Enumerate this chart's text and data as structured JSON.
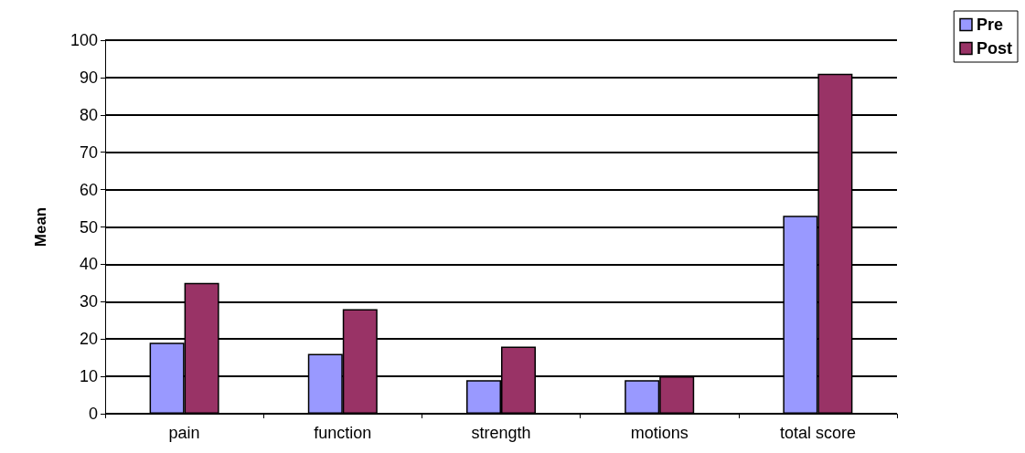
{
  "chart_data": {
    "type": "bar",
    "ylabel": "Mean",
    "categories": [
      "pain",
      "function",
      "strength",
      "motions",
      "total score"
    ],
    "series": [
      {
        "name": "Pre",
        "color": "#9999ff",
        "values": [
          19,
          16,
          9,
          9,
          53
        ]
      },
      {
        "name": "Post",
        "color": "#993366",
        "values": [
          35,
          28,
          18,
          10,
          91
        ]
      }
    ],
    "ylim": [
      0,
      100
    ],
    "yticks": [
      0,
      10,
      20,
      30,
      40,
      50,
      60,
      70,
      80,
      90,
      100
    ],
    "grid": "y",
    "legend": "top right"
  }
}
